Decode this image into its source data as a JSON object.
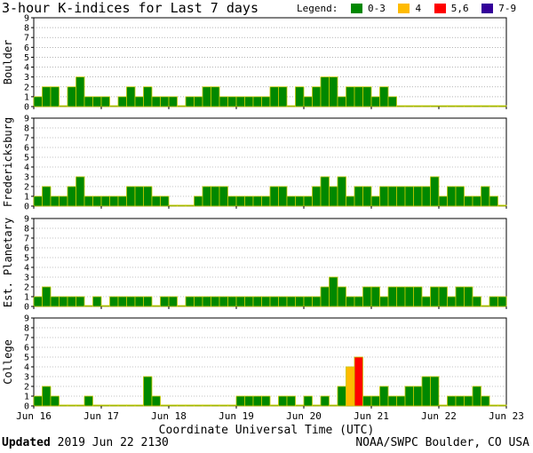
{
  "header": {
    "title": "3-hour K-indices for Last 7 days",
    "legend_label": "Legend:",
    "legend": [
      {
        "label": "0-3",
        "color": "#008800"
      },
      {
        "label": "4",
        "color": "#ffbb00"
      },
      {
        "label": "5,6",
        "color": "#ff0000"
      },
      {
        "label": "7-9",
        "color": "#330099"
      }
    ]
  },
  "chart_data": [
    {
      "type": "bar",
      "title": "Boulder",
      "ylim": [
        0,
        9
      ],
      "yticks": [
        "0",
        "1",
        "2",
        "3",
        "4",
        "5",
        "6",
        "7",
        "8",
        "9"
      ],
      "values": [
        1,
        2,
        2,
        0,
        2,
        3,
        1,
        1,
        1,
        0,
        1,
        2,
        1,
        2,
        1,
        1,
        1,
        0,
        1,
        1,
        2,
        2,
        1,
        1,
        1,
        1,
        1,
        1,
        2,
        2,
        0,
        2,
        1,
        2,
        3,
        3,
        1,
        2,
        2,
        2,
        1,
        2,
        1,
        0,
        0,
        0,
        0,
        0,
        0,
        0,
        0,
        0,
        0,
        0,
        0,
        0
      ]
    },
    {
      "type": "bar",
      "title": "Fredericksburg",
      "ylim": [
        0,
        9
      ],
      "yticks": [
        "0",
        "1",
        "2",
        "3",
        "4",
        "5",
        "6",
        "7",
        "8",
        "9"
      ],
      "values": [
        1,
        2,
        1,
        1,
        2,
        3,
        1,
        1,
        1,
        1,
        1,
        2,
        2,
        2,
        1,
        1,
        0,
        0,
        0,
        1,
        2,
        2,
        2,
        1,
        1,
        1,
        1,
        1,
        2,
        2,
        1,
        1,
        1,
        2,
        3,
        2,
        3,
        1,
        2,
        2,
        1,
        2,
        2,
        2,
        2,
        2,
        2,
        3,
        1,
        2,
        2,
        1,
        1,
        2,
        1,
        0
      ]
    },
    {
      "type": "bar",
      "title": "Est. Planetary",
      "ylim": [
        0,
        9
      ],
      "yticks": [
        "0",
        "1",
        "2",
        "3",
        "4",
        "5",
        "6",
        "7",
        "8",
        "9"
      ],
      "values": [
        1,
        2,
        1,
        1,
        1,
        1,
        0,
        1,
        0,
        1,
        1,
        1,
        1,
        1,
        0,
        1,
        1,
        0,
        1,
        1,
        1,
        1,
        1,
        1,
        1,
        1,
        1,
        1,
        1,
        1,
        1,
        1,
        1,
        1,
        2,
        3,
        2,
        1,
        1,
        2,
        2,
        1,
        2,
        2,
        2,
        2,
        1,
        2,
        2,
        1,
        2,
        2,
        1,
        0,
        1,
        1
      ]
    },
    {
      "type": "bar",
      "title": "College",
      "ylim": [
        0,
        9
      ],
      "yticks": [
        "0",
        "1",
        "2",
        "3",
        "4",
        "5",
        "6",
        "7",
        "8",
        "9"
      ],
      "values": [
        1,
        2,
        1,
        0,
        0,
        0,
        1,
        0,
        0,
        0,
        0,
        0,
        0,
        3,
        1,
        0,
        0,
        0,
        0,
        0,
        0,
        0,
        0,
        0,
        1,
        1,
        1,
        1,
        0,
        1,
        1,
        0,
        1,
        0,
        1,
        0,
        2,
        4,
        5,
        1,
        1,
        2,
        1,
        1,
        2,
        2,
        3,
        3,
        0,
        1,
        1,
        1,
        2,
        1,
        0,
        0
      ]
    }
  ],
  "x_axis": {
    "label": "Coordinate Universal Time (UTC)",
    "ticks": [
      "Jun 16",
      "Jun 17",
      "Jun 18",
      "Jun 19",
      "Jun 20",
      "Jun 21",
      "Jun 22",
      "Jun 23"
    ]
  },
  "footer": {
    "updated_label": "Updated",
    "updated_value": "2019 Jun 22 2130",
    "credit": "NOAA/SWPC Boulder, CO USA"
  }
}
